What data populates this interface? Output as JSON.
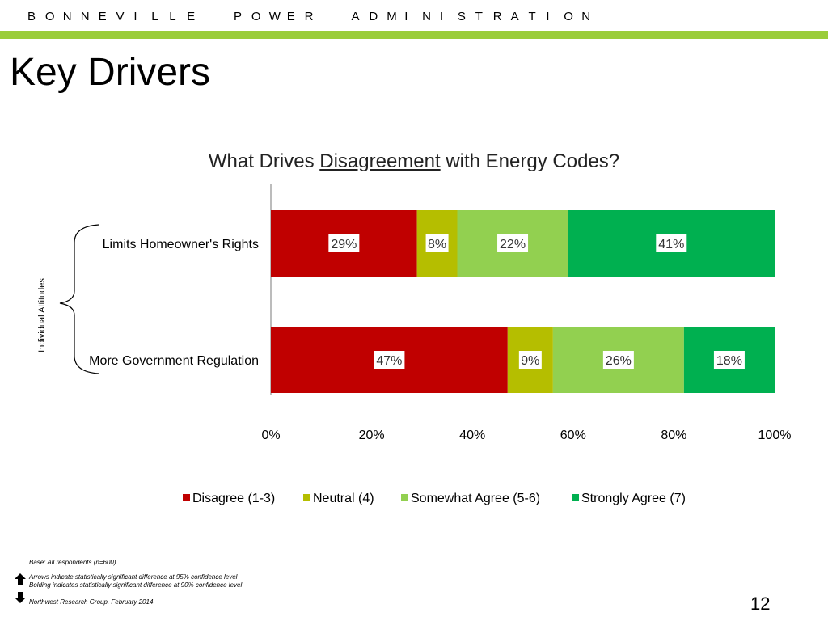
{
  "header": {
    "org_letters": [
      "B",
      "O",
      "N",
      "N",
      "E",
      "V",
      "I",
      "L",
      "L",
      "E",
      "P",
      "O",
      "W",
      "E",
      "R",
      "A",
      "D",
      "M",
      "I",
      "N",
      "I",
      "S",
      "T",
      "R",
      "A",
      "T",
      "I",
      "O",
      "N"
    ],
    "accent_color": "#9acd3a"
  },
  "slide": {
    "title": "Key Drivers",
    "page_number": "12"
  },
  "chart_title": {
    "prefix": "What Drives ",
    "emphasis": "Disagreement",
    "suffix": " with Energy Codes?"
  },
  "chart_data": {
    "type": "bar",
    "orientation": "horizontal",
    "stacked": true,
    "title": "What Drives Disagreement with Energy Codes?",
    "categories": [
      "Limits Homeowner's Rights",
      "More Government Regulation"
    ],
    "group_label": "Individual Attitudes",
    "series": [
      {
        "name": "Disagree (1-3)",
        "color": "#c00000",
        "values": [
          29,
          47
        ],
        "labels": [
          "29%",
          "47%"
        ]
      },
      {
        "name": "Neutral (4)",
        "color": "#b5be00",
        "values": [
          8,
          9
        ],
        "labels": [
          "8%",
          "9%"
        ]
      },
      {
        "name": "Somewhat Agree (5-6)",
        "color": "#92d050",
        "values": [
          22,
          26
        ],
        "labels": [
          "22%",
          "26%"
        ]
      },
      {
        "name": "Strongly Agree (7)",
        "color": "#00b050",
        "values": [
          41,
          18
        ],
        "labels": [
          "41%",
          "18%"
        ]
      }
    ],
    "xlim": [
      0,
      100
    ],
    "xticks": [
      "0%",
      "20%",
      "40%",
      "60%",
      "80%",
      "100%"
    ],
    "grid": false,
    "legend_position": "bottom"
  },
  "footnotes": {
    "base": "Base: All respondents (n=600)",
    "arrows": "Arrows indicate statistically significant difference at 95% confidence level",
    "bolding": "Bolding indicates statistically significant difference at 90% confidence level",
    "source": "Northwest Research Group, February 2014"
  },
  "icons": {
    "up": "arrow-up-icon",
    "down": "arrow-down-icon"
  }
}
